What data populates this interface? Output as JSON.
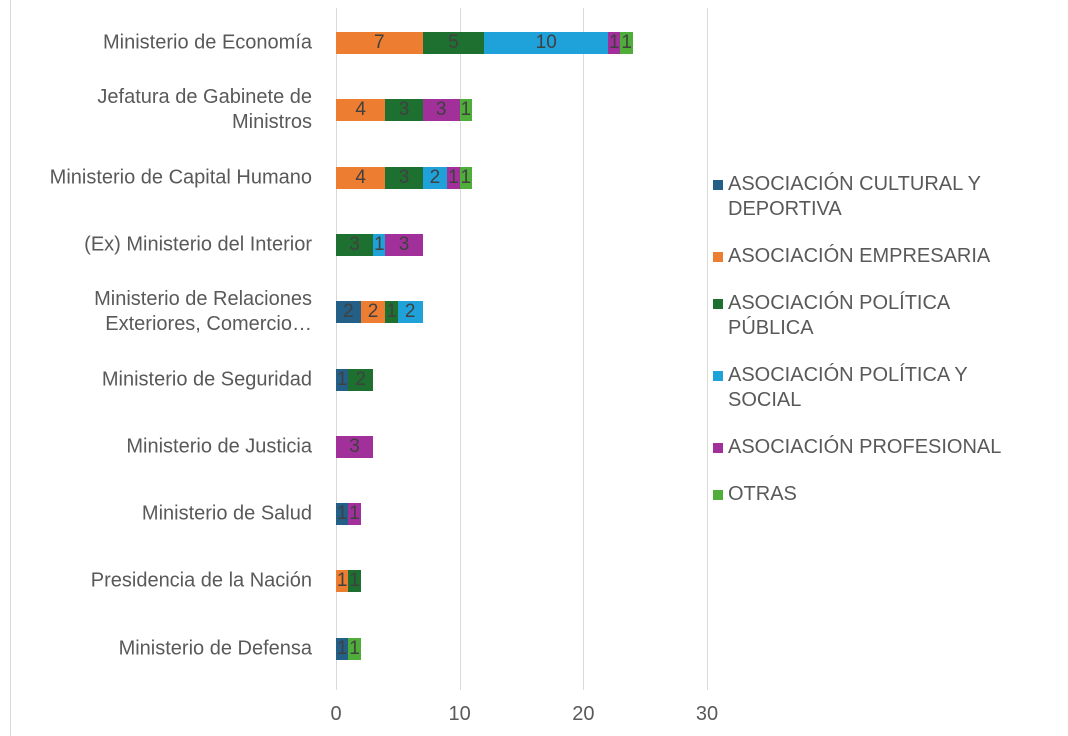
{
  "chart_data": {
    "type": "stacked-bar-horizontal",
    "categories": [
      "Ministerio de Economía",
      "Jefatura de Gabinete de Ministros",
      "Ministerio de Capital Humano",
      "(Ex) Ministerio del Interior",
      "Ministerio de Relaciones Exteriores, Comercio…",
      "Ministerio de Seguridad",
      "Ministerio de Justicia",
      "Ministerio de Salud",
      "Presidencia de la Nación",
      "Ministerio de Defensa"
    ],
    "series": [
      {
        "name": "ASOCIACIÓN CULTURAL Y DEPORTIVA",
        "color": "#235f86",
        "values": [
          null,
          null,
          null,
          null,
          2,
          1,
          null,
          1,
          null,
          1
        ]
      },
      {
        "name": "ASOCIACIÓN EMPRESARIA",
        "color": "#ed7d31",
        "values": [
          7,
          4,
          4,
          null,
          2,
          null,
          null,
          null,
          1,
          null
        ]
      },
      {
        "name": "ASOCIACIÓN POLÍTICA PÚBLICA",
        "color": "#1e7030",
        "values": [
          5,
          3,
          3,
          3,
          1,
          2,
          null,
          null,
          1,
          null
        ]
      },
      {
        "name": "ASOCIACIÓN POLÍTICA Y SOCIAL",
        "color": "#1fa2d9",
        "values": [
          10,
          null,
          2,
          1,
          2,
          null,
          null,
          null,
          null,
          null
        ]
      },
      {
        "name": "ASOCIACIÓN PROFESIONAL",
        "color": "#a1309b",
        "values": [
          1,
          3,
          1,
          3,
          null,
          null,
          3,
          1,
          null,
          null
        ]
      },
      {
        "name": "OTRAS",
        "color": "#4fae3a",
        "values": [
          1,
          1,
          1,
          null,
          null,
          null,
          null,
          null,
          null,
          1
        ]
      }
    ],
    "xlim": [
      0,
      30
    ],
    "xticks": [
      0,
      10,
      20,
      30
    ],
    "grid": true,
    "legend": "right"
  }
}
